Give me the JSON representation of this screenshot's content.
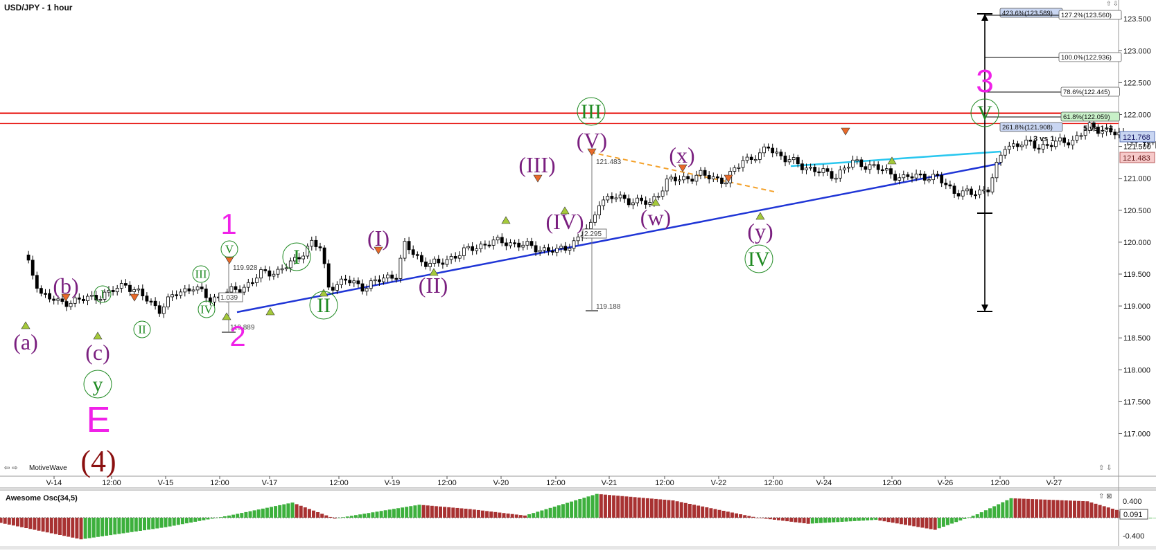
{
  "chart": {
    "title": "USD/JPY - 1 hour",
    "footer_label": "MotiveWave",
    "footer_icons": "⇦ ⇨",
    "corner_icons": "⇧ ⇩"
  },
  "oscillator": {
    "title": "Awesome Osc(34,5)",
    "axis_ticks": [
      "0.400",
      "-0.400"
    ],
    "current_value": "0.091",
    "icons": "⇧ ⊠"
  },
  "price_badges": {
    "last": "121.768",
    "ref": "121.483"
  },
  "chart_data": {
    "type": "candlestick",
    "title": "USD/JPY - 1 hour",
    "price_axis": {
      "ticks": [
        "123.500",
        "123.000",
        "122.500",
        "122.000",
        "121.500",
        "121.000",
        "120.500",
        "120.000",
        "119.500",
        "119.000",
        "118.500",
        "118.000",
        "117.500",
        "117.000"
      ],
      "ylim": [
        116.85,
        123.7
      ]
    },
    "time_axis": {
      "ticks": [
        "V-14",
        "12:00",
        "V-15",
        "12:00",
        "V-17",
        "12:00",
        "V-19",
        "12:00",
        "V-20",
        "12:00",
        "V-21",
        "12:00",
        "V-22",
        "12:00",
        "V-24",
        "12:00",
        "V-26",
        "12:00",
        "V-27"
      ]
    },
    "horizontal_lines": [
      122.02,
      121.86
    ],
    "fib_levels": [
      {
        "label": "423.6%(123.589)",
        "highlight": true
      },
      {
        "label": "127.2%(123.560)",
        "highlight": false
      },
      {
        "label": "100.0%(122.936)",
        "highlight": false
      },
      {
        "label": "78.6%(122.445)",
        "highlight": false
      },
      {
        "label": "61.8%(122.059)",
        "highlight": true
      },
      {
        "label": "261.8%(121.908)",
        "highlight": true
      }
    ],
    "annotations": [
      "5 vs 1+3",
      "3 vs 1"
    ],
    "measure_labels": [
      "119.928",
      "1.039",
      "119.889",
      "121.483",
      "2.295",
      "119.188"
    ],
    "wave_labels": {
      "pink": [
        "1",
        "2",
        "3",
        "E"
      ],
      "darkred": [
        "(4)"
      ],
      "purple": [
        "(a)",
        "(b)",
        "(c)",
        "(I)",
        "(II)",
        "(III)",
        "(IV)",
        "(V)",
        "(w)",
        "(x)",
        "(y)"
      ],
      "green_big": [
        "I",
        "II",
        "III",
        "IV",
        "V",
        "y"
      ],
      "green_small": [
        "I",
        "II",
        "III",
        "IV",
        "V"
      ]
    },
    "colors": {
      "up": "#ffffff",
      "down": "#000000",
      "resistance": "#e8201b",
      "trendline": "#1f35d6",
      "channel": "#29c7ef",
      "dashed": "#f4a12a",
      "pink": "#f021e8",
      "purple": "#7a1f7f",
      "green": "#1f8a22",
      "darkred": "#8b1010",
      "osc_up": "#3db03d",
      "osc_down": "#a83232"
    }
  }
}
